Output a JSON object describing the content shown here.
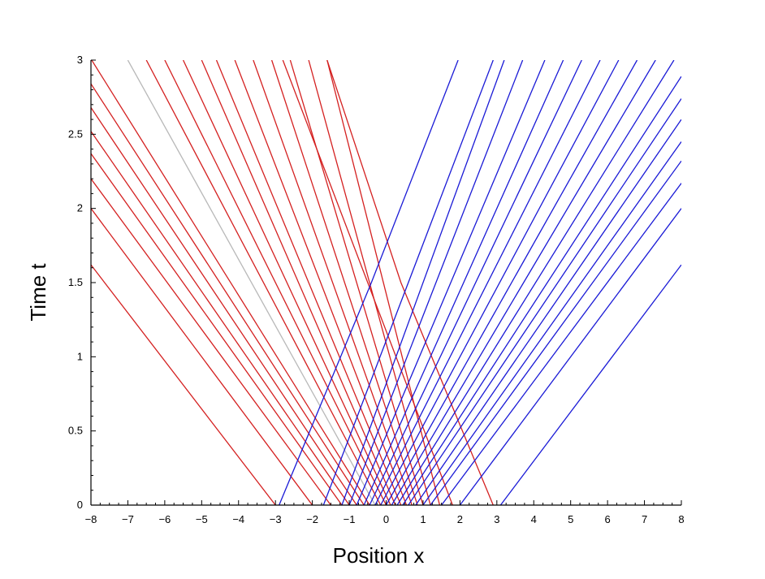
{
  "chart_data": {
    "type": "line",
    "title": "",
    "xlabel": "Position x",
    "ylabel": "Time t",
    "xlim": [
      -8,
      8
    ],
    "ylim": [
      0,
      3
    ],
    "xticks": [
      -8,
      -7,
      -6,
      -5,
      -4,
      -3,
      -2,
      -1,
      0,
      1,
      2,
      3,
      4,
      5,
      6,
      7,
      8
    ],
    "yticks": [
      0,
      0.5,
      1,
      1.5,
      2,
      2.5,
      3
    ],
    "xtick_labels": [
      "−8",
      "−7",
      "−6",
      "−5",
      "−4",
      "−3",
      "−2",
      "−1",
      "0",
      "1",
      "2",
      "3",
      "4",
      "5",
      "6",
      "7",
      "8"
    ],
    "ytick_labels": [
      "0",
      "0.5",
      "1",
      "1.5",
      "2",
      "2.5",
      "3"
    ],
    "grid": false,
    "legend": "none",
    "colors": {
      "red_family": "#d42020",
      "blue_family": "#1a1ad6",
      "highlight": "#b8b8b8"
    },
    "series": [
      {
        "color": "#d42020",
        "values": [
          [
            -3.0,
            0
          ],
          [
            -8,
            1.62
          ]
        ]
      },
      {
        "color": "#d42020",
        "values": [
          [
            -2.0,
            0
          ],
          [
            -8,
            2.0
          ]
        ]
      },
      {
        "color": "#d42020",
        "values": [
          [
            -1.5,
            0
          ],
          [
            -8,
            2.2
          ]
        ]
      },
      {
        "color": "#d42020",
        "values": [
          [
            -1.2,
            0
          ],
          [
            -8,
            2.37
          ]
        ]
      },
      {
        "color": "#d42020",
        "values": [
          [
            -1.0,
            0
          ],
          [
            -8,
            2.52
          ]
        ]
      },
      {
        "color": "#d42020",
        "values": [
          [
            -0.8,
            0
          ],
          [
            -8,
            2.68
          ]
        ]
      },
      {
        "color": "#d42020",
        "values": [
          [
            -0.6,
            0
          ],
          [
            -8,
            2.84
          ]
        ]
      },
      {
        "color": "#d42020",
        "values": [
          [
            -0.45,
            0
          ],
          [
            -7.98,
            3.0
          ]
        ]
      },
      {
        "color": "#b8b8b8",
        "values": [
          [
            -0.3,
            0
          ],
          [
            -7.0,
            3.0
          ]
        ]
      },
      {
        "color": "#d42020",
        "values": [
          [
            -0.15,
            0
          ],
          [
            -6.5,
            3.0
          ]
        ]
      },
      {
        "color": "#d42020",
        "values": [
          [
            0.0,
            0
          ],
          [
            -6.0,
            3.0
          ]
        ]
      },
      {
        "color": "#d42020",
        "values": [
          [
            0.12,
            0
          ],
          [
            -5.5,
            3.0
          ]
        ]
      },
      {
        "color": "#d42020",
        "values": [
          [
            0.25,
            0
          ],
          [
            -5.0,
            3.0
          ]
        ]
      },
      {
        "color": "#d42020",
        "values": [
          [
            0.4,
            0
          ],
          [
            -4.6,
            3.0
          ]
        ]
      },
      {
        "color": "#d42020",
        "values": [
          [
            0.55,
            0
          ],
          [
            -4.1,
            3.0
          ]
        ]
      },
      {
        "color": "#d42020",
        "values": [
          [
            0.7,
            0
          ],
          [
            -3.6,
            3.0
          ]
        ]
      },
      {
        "color": "#d42020",
        "values": [
          [
            0.85,
            0
          ],
          [
            -3.1,
            3.0
          ]
        ]
      },
      {
        "color": "#d42020",
        "values": [
          [
            1.0,
            0
          ],
          [
            -2.6,
            3.0
          ]
        ]
      },
      {
        "color": "#d42020",
        "values": [
          [
            1.2,
            0
          ],
          [
            -2.1,
            3.0
          ]
        ]
      },
      {
        "color": "#d42020",
        "values": [
          [
            1.45,
            0
          ],
          [
            -1.6,
            3.0
          ]
        ]
      },
      {
        "color": "#d42020",
        "values": [
          [
            1.8,
            0
          ],
          [
            -2.8,
            3.0
          ]
        ]
      },
      {
        "color": "#d42020",
        "values": [
          [
            2.9,
            0
          ],
          [
            0.4,
            1.5
          ],
          [
            -1.6,
            3.0
          ]
        ]
      },
      {
        "color": "#1a1ad6",
        "values": [
          [
            3.1,
            0
          ],
          [
            8,
            1.62
          ]
        ]
      },
      {
        "color": "#1a1ad6",
        "values": [
          [
            2.0,
            0
          ],
          [
            8,
            2.0
          ]
        ]
      },
      {
        "color": "#1a1ad6",
        "values": [
          [
            1.5,
            0
          ],
          [
            8,
            2.17
          ]
        ]
      },
      {
        "color": "#1a1ad6",
        "values": [
          [
            1.2,
            0
          ],
          [
            8,
            2.32
          ]
        ]
      },
      {
        "color": "#1a1ad6",
        "values": [
          [
            1.0,
            0
          ],
          [
            8,
            2.45
          ]
        ]
      },
      {
        "color": "#1a1ad6",
        "values": [
          [
            0.8,
            0
          ],
          [
            8,
            2.6
          ]
        ]
      },
      {
        "color": "#1a1ad6",
        "values": [
          [
            0.6,
            0
          ],
          [
            8,
            2.74
          ]
        ]
      },
      {
        "color": "#1a1ad6",
        "values": [
          [
            0.45,
            0
          ],
          [
            8,
            2.89
          ]
        ]
      },
      {
        "color": "#1a1ad6",
        "values": [
          [
            0.3,
            0
          ],
          [
            7.8,
            3.0
          ]
        ]
      },
      {
        "color": "#1a1ad6",
        "values": [
          [
            0.15,
            0
          ],
          [
            7.3,
            3.0
          ]
        ]
      },
      {
        "color": "#1a1ad6",
        "values": [
          [
            0.0,
            0
          ],
          [
            6.8,
            3.0
          ]
        ]
      },
      {
        "color": "#1a1ad6",
        "values": [
          [
            -0.15,
            0
          ],
          [
            6.3,
            3.0
          ]
        ]
      },
      {
        "color": "#1a1ad6",
        "values": [
          [
            -0.3,
            0
          ],
          [
            5.8,
            3.0
          ]
        ]
      },
      {
        "color": "#1a1ad6",
        "values": [
          [
            -0.45,
            0
          ],
          [
            5.3,
            3.0
          ]
        ]
      },
      {
        "color": "#1a1ad6",
        "values": [
          [
            -0.6,
            0
          ],
          [
            4.8,
            3.0
          ]
        ]
      },
      {
        "color": "#1a1ad6",
        "values": [
          [
            -0.8,
            0
          ],
          [
            4.3,
            3.0
          ]
        ]
      },
      {
        "color": "#1a1ad6",
        "values": [
          [
            -1.0,
            0
          ],
          [
            3.7,
            3.0
          ]
        ]
      },
      {
        "color": "#1a1ad6",
        "values": [
          [
            -1.2,
            0
          ],
          [
            3.2,
            3.0
          ]
        ]
      },
      {
        "color": "#1a1ad6",
        "values": [
          [
            -1.7,
            0
          ],
          [
            2.9,
            3.0
          ]
        ]
      },
      {
        "color": "#1a1ad6",
        "values": [
          [
            -2.9,
            0
          ],
          [
            -0.4,
            1.5
          ],
          [
            1.95,
            3.0
          ]
        ]
      }
    ]
  }
}
